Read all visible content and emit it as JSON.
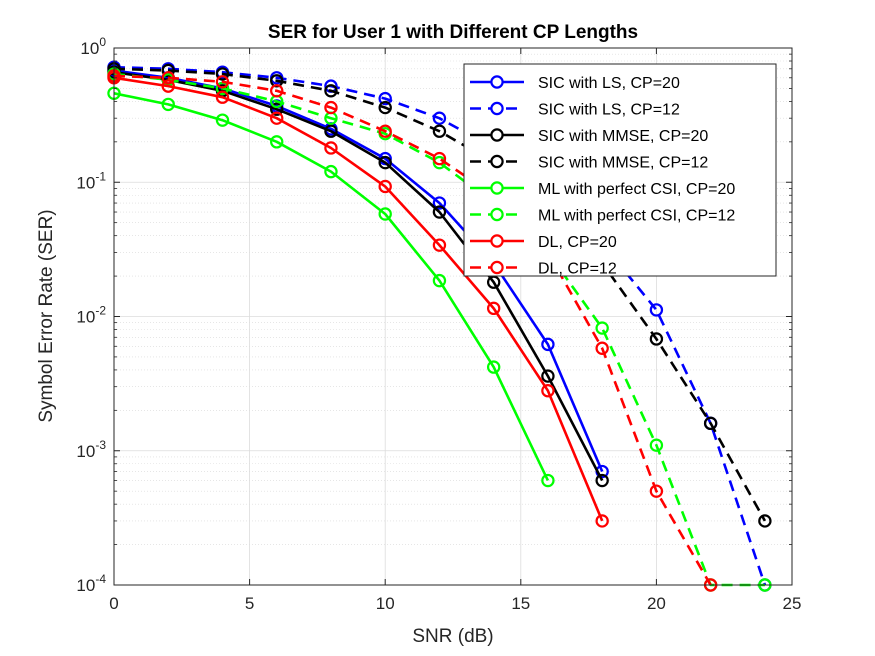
{
  "chart_data": {
    "type": "line",
    "title": "SER for User 1 with Different CP Lengths",
    "xlabel": "SNR (dB)",
    "ylabel": "Symbol Error Rate (SER)",
    "xlim": [
      0,
      25
    ],
    "ylim": [
      0.0001,
      1
    ],
    "yscale": "log",
    "grid": true,
    "legend_position": "top-right",
    "xticks": [
      0,
      5,
      10,
      15,
      20,
      25
    ],
    "xtick_labels": [
      "0",
      "5",
      "10",
      "15",
      "20",
      "25"
    ],
    "yticks": [
      0.0001,
      0.001,
      0.01,
      0.1,
      1
    ],
    "ytick_labels": [
      {
        "base": "10",
        "exp": "-4"
      },
      {
        "base": "10",
        "exp": "-3"
      },
      {
        "base": "10",
        "exp": "-2"
      },
      {
        "base": "10",
        "exp": "-1"
      },
      {
        "base": "10",
        "exp": "0"
      }
    ],
    "series": [
      {
        "name": "SIC with LS, CP=20",
        "color": "#0000ff",
        "dash": "solid",
        "x": [
          0,
          2,
          4,
          6,
          8,
          10,
          12,
          14,
          16,
          18
        ],
        "y": [
          0.68,
          0.6,
          0.5,
          0.37,
          0.25,
          0.15,
          0.07,
          0.025,
          0.0062,
          0.0007
        ]
      },
      {
        "name": "SIC with LS, CP=12",
        "color": "#0000ff",
        "dash": "dashed",
        "x": [
          0,
          2,
          4,
          6,
          8,
          10,
          12,
          14,
          16,
          18,
          20,
          22,
          24
        ],
        "y": [
          0.72,
          0.7,
          0.66,
          0.6,
          0.52,
          0.42,
          0.3,
          0.18,
          0.09,
          0.035,
          0.0112,
          0.0016,
          0.0001
        ]
      },
      {
        "name": "SIC with MMSE, CP=20",
        "color": "#000000",
        "dash": "solid",
        "x": [
          0,
          2,
          4,
          6,
          8,
          10,
          12,
          14,
          16,
          18
        ],
        "y": [
          0.66,
          0.58,
          0.48,
          0.35,
          0.24,
          0.14,
          0.06,
          0.018,
          0.0036,
          0.0006
        ]
      },
      {
        "name": "SIC with MMSE, CP=12",
        "color": "#000000",
        "dash": "dashed",
        "x": [
          0,
          2,
          4,
          6,
          8,
          10,
          12,
          14,
          16,
          18,
          20,
          22,
          24
        ],
        "y": [
          0.7,
          0.68,
          0.64,
          0.57,
          0.48,
          0.36,
          0.24,
          0.14,
          0.07,
          0.025,
          0.0068,
          0.0016,
          0.0003
        ]
      },
      {
        "name": "ML with perfect CSI, CP=20",
        "color": "#00ff00",
        "dash": "solid",
        "x": [
          0,
          2,
          4,
          6,
          8,
          10,
          12,
          14,
          16
        ],
        "y": [
          0.46,
          0.38,
          0.29,
          0.2,
          0.12,
          0.058,
          0.0185,
          0.0042,
          0.0006
        ]
      },
      {
        "name": "ML with perfect CSI, CP=12",
        "color": "#00ff00",
        "dash": "dashed",
        "x": [
          0,
          2,
          4,
          6,
          8,
          10,
          12,
          14,
          16,
          18,
          20,
          22,
          24
        ],
        "y": [
          0.64,
          0.58,
          0.5,
          0.4,
          0.3,
          0.23,
          0.14,
          0.07,
          0.03,
          0.0082,
          0.0011,
          0.0001,
          0.0001
        ]
      },
      {
        "name": "DL, CP=20",
        "color": "#ff0000",
        "dash": "solid",
        "x": [
          0,
          2,
          4,
          6,
          8,
          10,
          12,
          14,
          16,
          18
        ],
        "y": [
          0.6,
          0.52,
          0.43,
          0.3,
          0.18,
          0.093,
          0.034,
          0.0115,
          0.0028,
          0.0003
        ]
      },
      {
        "name": "DL, CP=12",
        "color": "#ff0000",
        "dash": "dashed",
        "x": [
          0,
          2,
          4,
          6,
          8,
          10,
          12,
          14,
          16,
          18,
          20,
          22
        ],
        "y": [
          0.62,
          0.6,
          0.56,
          0.48,
          0.36,
          0.24,
          0.15,
          0.08,
          0.03,
          0.0058,
          0.0005,
          0.0001
        ]
      }
    ]
  }
}
